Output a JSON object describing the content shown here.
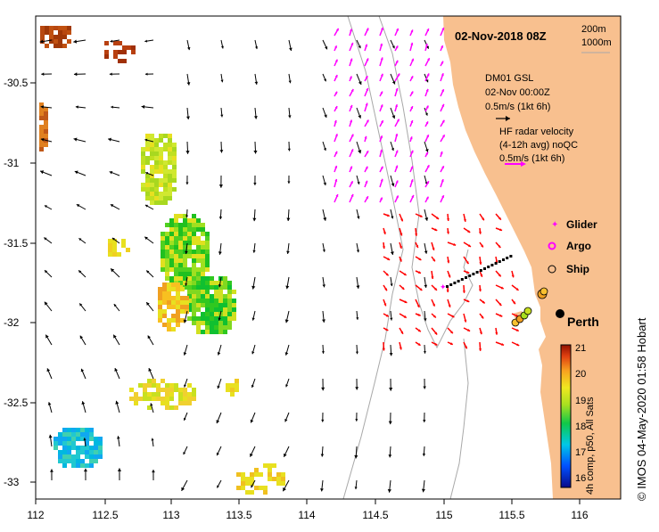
{
  "title": "02-Nov-2018 08Z",
  "depth_legend": [
    "200m",
    "1000m"
  ],
  "glider_block": {
    "name": "DM01 GSL",
    "time": "02-Nov 00:00Z",
    "scale": "0.5m/s (1kt 6h)"
  },
  "hf_block": {
    "line1": "HF radar velocity",
    "line2": "(4-12h avg) noQC",
    "scale": "0.5m/s (1kt 6h)"
  },
  "legend": {
    "glider": "Glider",
    "argo": "Argo",
    "ship": "Ship"
  },
  "place_label": "Perth",
  "credit": "© IMOS 04-May-2020 01:58 Hobart",
  "colorbar": {
    "label": "4h comp, p50, All Sats",
    "ticks": [
      "21",
      "20",
      "19",
      "18",
      "17",
      "16"
    ],
    "range": [
      15.7,
      21
    ]
  },
  "x_axis": {
    "ticks": [
      "112",
      "112.5",
      "113",
      "113.5",
      "114",
      "114.5",
      "115",
      "115.5",
      "116"
    ]
  },
  "y_axis": {
    "ticks": [
      "-30.5",
      "-31",
      "-31.5",
      "-32",
      "-32.5",
      "-33"
    ]
  },
  "colors": {
    "land": "#f8c08f",
    "radar": "#ff00ff",
    "ship_vec": "#ff0000",
    "glider_vec": "#000000",
    "bathy": "#a8a8a8"
  }
}
